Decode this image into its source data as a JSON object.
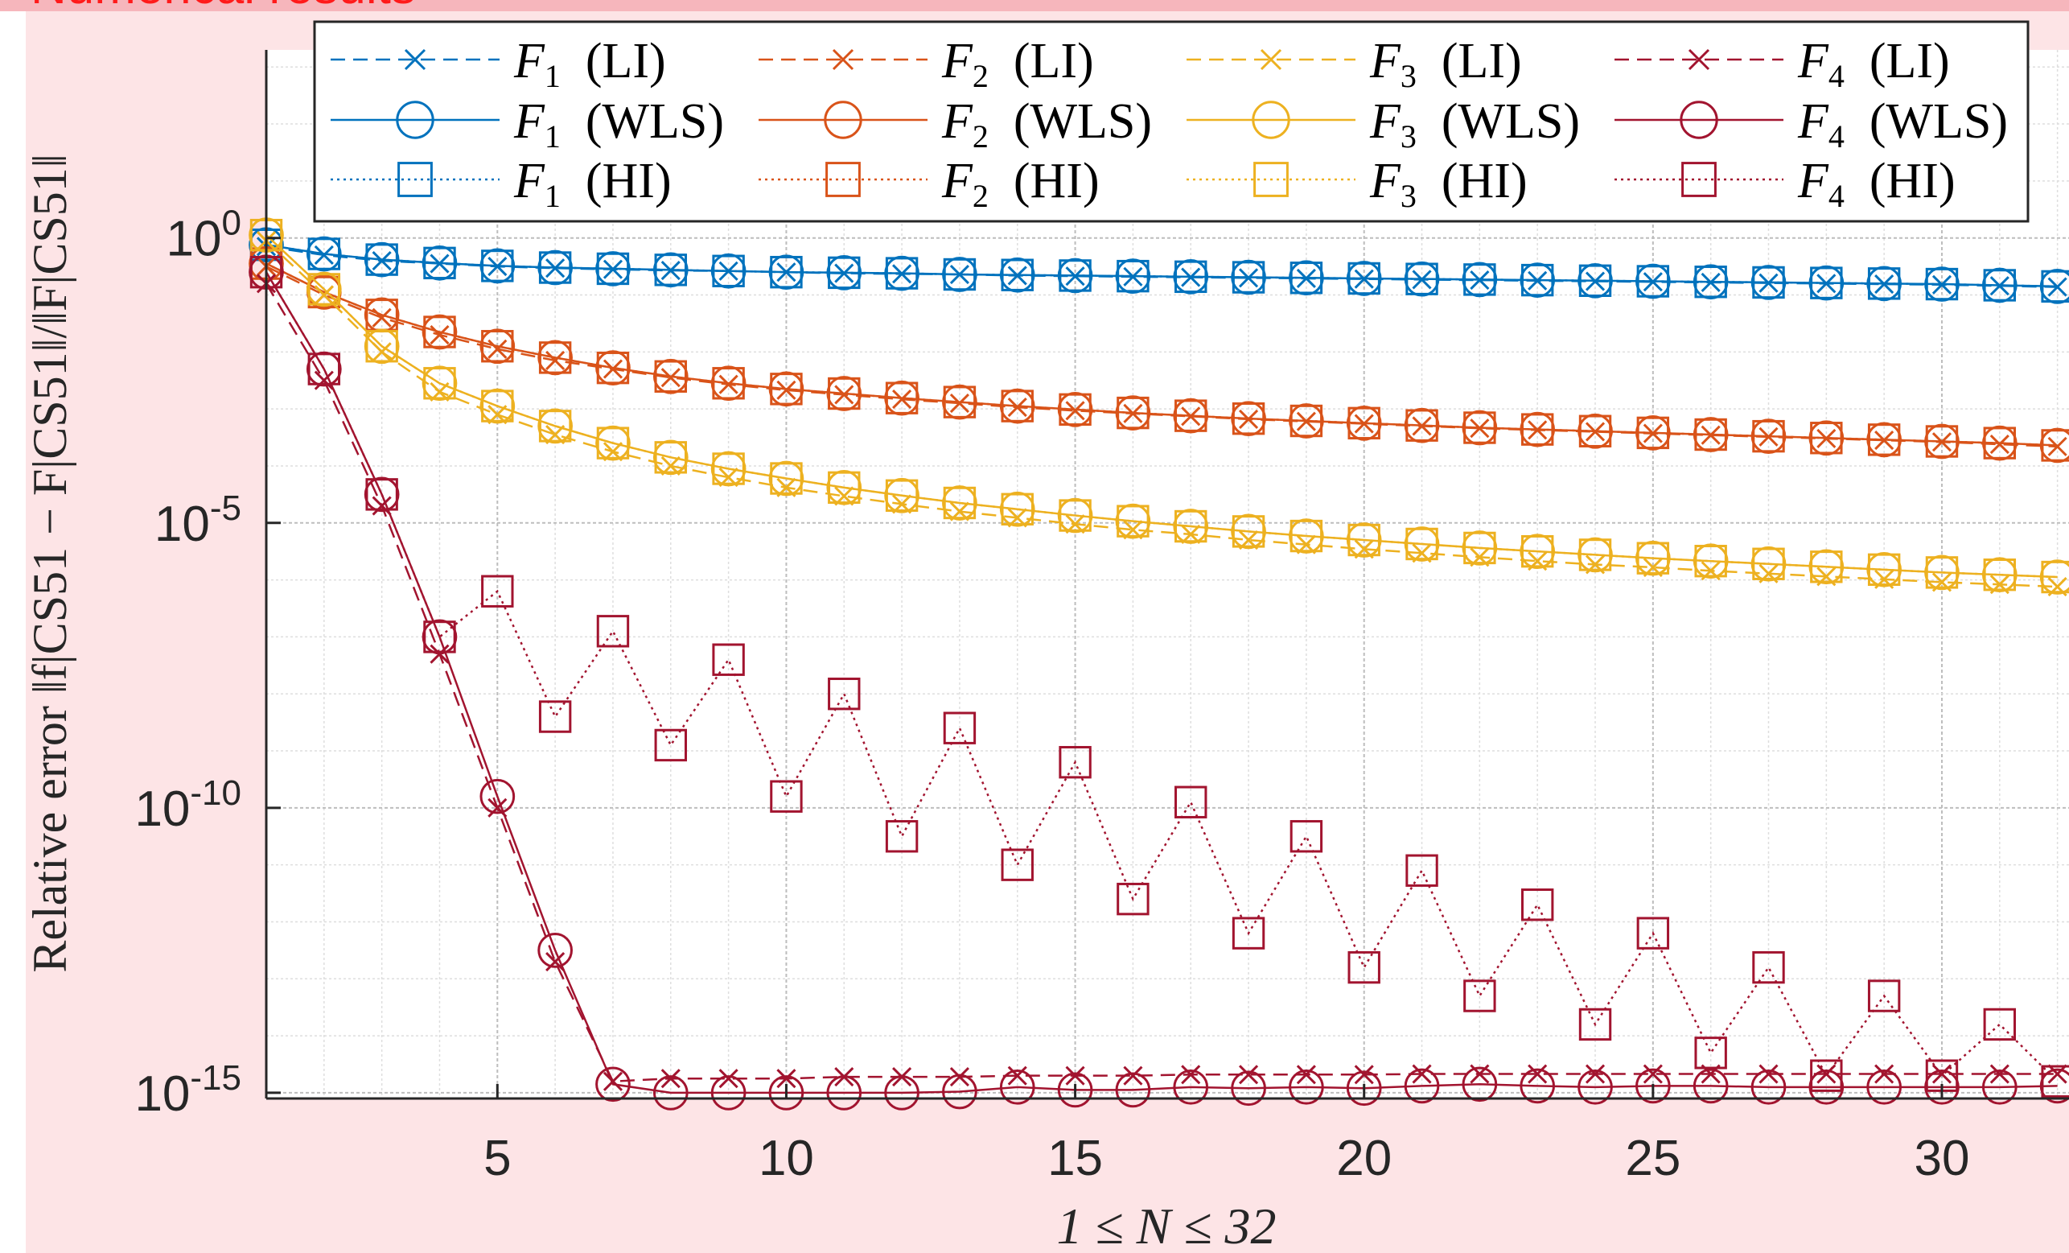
{
  "header": {
    "title": "Numerical results"
  },
  "chart_data": {
    "type": "line",
    "x_axis": {
      "label": "1 ≤ N ≤ 32",
      "range": [
        1,
        32.2
      ],
      "ticks": [
        5,
        10,
        15,
        20,
        25,
        30
      ],
      "tick_labels": [
        "5",
        "10",
        "15",
        "20",
        "25",
        "30"
      ]
    },
    "y_axis": {
      "label": "Relative error ‖f|CS51 − F|CS51‖/‖F|CS51‖",
      "scale": "log",
      "range_exponent": [
        -15.1,
        3.3
      ],
      "ticks_exponent": [
        0,
        -5,
        -10,
        -15
      ],
      "tick_labels": [
        {
          "base": "10",
          "exp": "0"
        },
        {
          "base": "10",
          "exp": "-5"
        },
        {
          "base": "10",
          "exp": "-10"
        },
        {
          "base": "10",
          "exp": "-15"
        }
      ]
    },
    "grid": true,
    "minor_grid": true,
    "legend_position": "top",
    "legend_columns": 4,
    "x": [
      1,
      2,
      3,
      4,
      5,
      6,
      7,
      8,
      9,
      10,
      11,
      12,
      13,
      14,
      15,
      16,
      17,
      18,
      19,
      20,
      21,
      22,
      23,
      24,
      25,
      26,
      27,
      28,
      29,
      30,
      31,
      32
    ],
    "series": [
      {
        "name": "F1 (LI)",
        "func": "F",
        "sub": "1",
        "method": "(LI)",
        "color": "#0072bd",
        "line": "dashed",
        "marker": "x",
        "log10_values": [
          -0.15,
          -0.3,
          -0.4,
          -0.45,
          -0.5,
          -0.53,
          -0.55,
          -0.57,
          -0.58,
          -0.6,
          -0.62,
          -0.63,
          -0.64,
          -0.66,
          -0.67,
          -0.68,
          -0.69,
          -0.7,
          -0.71,
          -0.72,
          -0.73,
          -0.74,
          -0.75,
          -0.76,
          -0.77,
          -0.78,
          -0.79,
          -0.8,
          -0.81,
          -0.82,
          -0.84,
          -0.86
        ]
      },
      {
        "name": "F1 (WLS)",
        "func": "F",
        "sub": "1",
        "method": "(WLS)",
        "color": "#0072bd",
        "line": "solid",
        "marker": "circle",
        "log10_values": [
          -0.12,
          -0.28,
          -0.38,
          -0.44,
          -0.49,
          -0.52,
          -0.54,
          -0.56,
          -0.58,
          -0.6,
          -0.61,
          -0.62,
          -0.64,
          -0.65,
          -0.66,
          -0.67,
          -0.68,
          -0.69,
          -0.7,
          -0.71,
          -0.72,
          -0.73,
          -0.74,
          -0.75,
          -0.76,
          -0.77,
          -0.78,
          -0.79,
          -0.8,
          -0.81,
          -0.83,
          -0.85
        ]
      },
      {
        "name": "F1 (HI)",
        "func": "F",
        "sub": "1",
        "method": "(HI)",
        "color": "#0072bd",
        "line": "dotted",
        "marker": "square",
        "log10_values": [
          -0.12,
          -0.28,
          -0.38,
          -0.44,
          -0.49,
          -0.52,
          -0.54,
          -0.56,
          -0.58,
          -0.6,
          -0.61,
          -0.62,
          -0.64,
          -0.65,
          -0.66,
          -0.67,
          -0.68,
          -0.69,
          -0.7,
          -0.71,
          -0.72,
          -0.73,
          -0.74,
          -0.75,
          -0.76,
          -0.77,
          -0.78,
          -0.79,
          -0.8,
          -0.81,
          -0.83,
          -0.85
        ]
      },
      {
        "name": "F2 (LI)",
        "func": "F",
        "sub": "2",
        "method": "(LI)",
        "color": "#d95319",
        "line": "dashed",
        "marker": "x",
        "log10_values": [
          -0.5,
          -1.0,
          -1.4,
          -1.7,
          -1.95,
          -2.15,
          -2.3,
          -2.45,
          -2.57,
          -2.67,
          -2.75,
          -2.83,
          -2.9,
          -2.97,
          -3.03,
          -3.08,
          -3.13,
          -3.18,
          -3.22,
          -3.26,
          -3.3,
          -3.34,
          -3.37,
          -3.4,
          -3.43,
          -3.46,
          -3.49,
          -3.52,
          -3.55,
          -3.58,
          -3.62,
          -3.66
        ]
      },
      {
        "name": "F2 (WLS)",
        "func": "F",
        "sub": "2",
        "method": "(WLS)",
        "color": "#d95319",
        "line": "solid",
        "marker": "circle",
        "log10_values": [
          -0.45,
          -0.95,
          -1.35,
          -1.65,
          -1.9,
          -2.1,
          -2.28,
          -2.43,
          -2.55,
          -2.65,
          -2.73,
          -2.81,
          -2.88,
          -2.95,
          -3.01,
          -3.07,
          -3.12,
          -3.17,
          -3.21,
          -3.25,
          -3.29,
          -3.33,
          -3.36,
          -3.39,
          -3.42,
          -3.45,
          -3.48,
          -3.51,
          -3.54,
          -3.57,
          -3.6,
          -3.64
        ]
      },
      {
        "name": "F2 (HI)",
        "func": "F",
        "sub": "2",
        "method": "(HI)",
        "color": "#d95319",
        "line": "dotted",
        "marker": "square",
        "log10_values": [
          -0.45,
          -0.95,
          -1.35,
          -1.65,
          -1.9,
          -2.1,
          -2.28,
          -2.43,
          -2.55,
          -2.65,
          -2.73,
          -2.81,
          -2.88,
          -2.95,
          -3.01,
          -3.07,
          -3.12,
          -3.17,
          -3.21,
          -3.25,
          -3.29,
          -3.33,
          -3.36,
          -3.39,
          -3.42,
          -3.45,
          -3.48,
          -3.51,
          -3.54,
          -3.57,
          -3.6,
          -3.64
        ]
      },
      {
        "name": "F3 (LI)",
        "func": "F",
        "sub": "3",
        "method": "(LI)",
        "color": "#edb120",
        "line": "dashed",
        "marker": "x",
        "log10_values": [
          -0.05,
          -1.0,
          -2.0,
          -2.7,
          -3.1,
          -3.45,
          -3.75,
          -4.0,
          -4.2,
          -4.38,
          -4.53,
          -4.67,
          -4.8,
          -4.91,
          -5.02,
          -5.12,
          -5.2,
          -5.3,
          -5.38,
          -5.46,
          -5.53,
          -5.6,
          -5.67,
          -5.73,
          -5.78,
          -5.84,
          -5.89,
          -5.94,
          -5.99,
          -6.04,
          -6.08,
          -6.12
        ]
      },
      {
        "name": "F3 (WLS)",
        "func": "F",
        "sub": "3",
        "method": "(WLS)",
        "color": "#edb120",
        "line": "solid",
        "marker": "circle",
        "log10_values": [
          0.05,
          -0.9,
          -1.9,
          -2.55,
          -2.95,
          -3.3,
          -3.6,
          -3.85,
          -4.05,
          -4.22,
          -4.38,
          -4.52,
          -4.65,
          -4.76,
          -4.87,
          -4.97,
          -5.06,
          -5.15,
          -5.23,
          -5.3,
          -5.37,
          -5.44,
          -5.5,
          -5.56,
          -5.62,
          -5.67,
          -5.72,
          -5.77,
          -5.82,
          -5.87,
          -5.91,
          -5.95
        ]
      },
      {
        "name": "F3 (HI)",
        "func": "F",
        "sub": "3",
        "method": "(HI)",
        "color": "#edb120",
        "line": "dotted",
        "marker": "square",
        "log10_values": [
          0.05,
          -0.9,
          -1.9,
          -2.55,
          -2.95,
          -3.3,
          -3.6,
          -3.85,
          -4.05,
          -4.22,
          -4.38,
          -4.52,
          -4.65,
          -4.76,
          -4.87,
          -4.97,
          -5.06,
          -5.15,
          -5.23,
          -5.3,
          -5.37,
          -5.44,
          -5.5,
          -5.56,
          -5.62,
          -5.67,
          -5.72,
          -5.77,
          -5.82,
          -5.87,
          -5.91,
          -5.95
        ]
      },
      {
        "name": "F4 (LI)",
        "func": "F",
        "sub": "4",
        "method": "(LI)",
        "color": "#a2142f",
        "line": "dashed",
        "marker": "x",
        "log10_values": [
          -0.8,
          -2.5,
          -4.7,
          -7.3,
          -10.0,
          -12.7,
          -14.8,
          -14.75,
          -14.75,
          -14.75,
          -14.72,
          -14.72,
          -14.72,
          -14.7,
          -14.7,
          -14.7,
          -14.68,
          -14.68,
          -14.68,
          -14.68,
          -14.67,
          -14.67,
          -14.67,
          -14.67,
          -14.67,
          -14.67,
          -14.67,
          -14.67,
          -14.67,
          -14.67,
          -14.67,
          -14.67
        ]
      },
      {
        "name": "F4 (WLS)",
        "func": "F",
        "sub": "4",
        "method": "(WLS)",
        "color": "#a2142f",
        "line": "solid",
        "marker": "circle",
        "log10_values": [
          -0.6,
          -2.3,
          -4.5,
          -7.0,
          -9.8,
          -12.5,
          -14.85,
          -15.0,
          -15.0,
          -15.0,
          -15.0,
          -15.0,
          -14.98,
          -14.9,
          -14.95,
          -14.95,
          -14.9,
          -14.92,
          -14.9,
          -14.92,
          -14.88,
          -14.85,
          -14.88,
          -14.9,
          -14.88,
          -14.88,
          -14.9,
          -14.9,
          -14.9,
          -14.9,
          -14.9,
          -14.88
        ]
      },
      {
        "name": "F4 (HI)",
        "func": "F",
        "sub": "4",
        "method": "(HI)",
        "color": "#a2142f",
        "line": "dotted",
        "marker": "square",
        "log10_values": [
          -0.6,
          -2.3,
          -4.5,
          -7.0,
          -6.2,
          -8.4,
          -6.9,
          -8.9,
          -7.4,
          -9.8,
          -8.0,
          -10.5,
          -8.6,
          -11.0,
          -9.2,
          -11.6,
          -9.9,
          -12.2,
          -10.5,
          -12.8,
          -11.1,
          -13.3,
          -11.7,
          -13.8,
          -12.2,
          -14.3,
          -12.8,
          -14.7,
          -13.3,
          -14.7,
          -13.8,
          -14.8
        ]
      }
    ]
  }
}
